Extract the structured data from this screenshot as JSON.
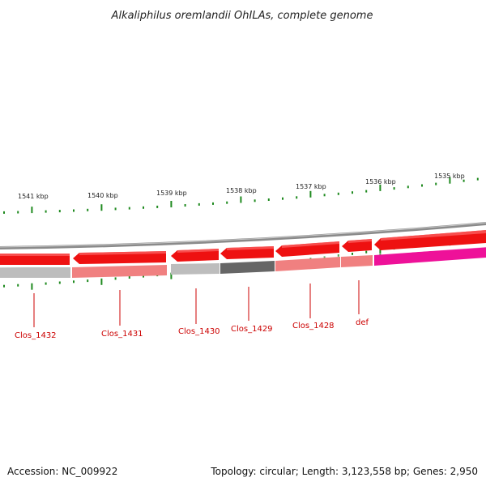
{
  "title": "Alkaliphilus oremlandii OhILAs, complete genome",
  "footer": {
    "accession": "Accession: NC_009922",
    "stats": "Topology: circular; Length: 3,123,558 bp; Genes: 2,950"
  },
  "ruler": [
    {
      "label": "1541 kbp"
    },
    {
      "label": "1540 kbp"
    },
    {
      "label": "1539 kbp"
    },
    {
      "label": "1538 kbp"
    },
    {
      "label": "1537 kbp"
    },
    {
      "label": "1536 kbp"
    },
    {
      "label": "1535 kbp"
    }
  ],
  "genes": [
    {
      "name": "Clos_1432",
      "label": "Clos_1432"
    },
    {
      "name": "Clos_1431",
      "label": "Clos_1431"
    },
    {
      "name": "Clos_1430",
      "label": "Clos_1430"
    },
    {
      "name": "Clos_1429",
      "label": "Clos_1429"
    },
    {
      "name": "Clos_1428",
      "label": "Clos_1428"
    },
    {
      "name": "def",
      "label": "def"
    }
  ],
  "colors": {
    "cds_arrow": "#ee1111",
    "backbone": "#8a8a8a",
    "tick": "#1f8a1f",
    "label": "#cc0000",
    "lower_grey": "#bdbdbd",
    "lower_pink": "#f08080",
    "lower_dark": "#666666",
    "lower_magenta": "#ee1199"
  }
}
